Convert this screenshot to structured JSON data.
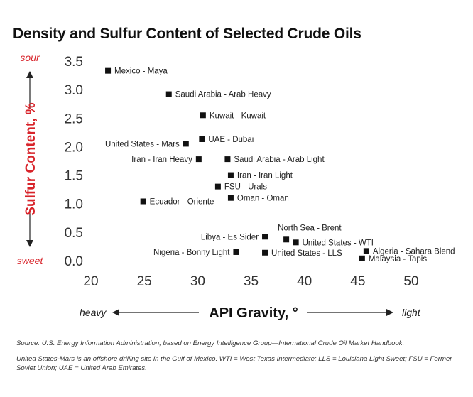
{
  "chart_data": {
    "type": "scatter",
    "title": "Density and Sulfur Content of Selected Crude Oils",
    "xlabel": "API Gravity, °",
    "ylabel": "Sulfur Content, %",
    "xlim": [
      20,
      50
    ],
    "ylim": [
      0,
      3.5
    ],
    "x_ticks": [
      "20",
      "25",
      "30",
      "35",
      "40",
      "45",
      "50"
    ],
    "y_ticks": [
      "0.0",
      "0.5",
      "1.0",
      "1.5",
      "2.0",
      "2.5",
      "3.0",
      "3.5"
    ],
    "x_low_end": "heavy",
    "x_high_end": "light",
    "y_top_end": "sour",
    "y_bottom_end": "sweet",
    "grid": false,
    "points": [
      {
        "label": "Mexico - Maya",
        "x": 21.6,
        "y": 3.33,
        "side": "right"
      },
      {
        "label": "Saudi Arabia - Arab Heavy",
        "x": 27.3,
        "y": 2.92,
        "side": "right"
      },
      {
        "label": "Kuwait - Kuwait",
        "x": 30.5,
        "y": 2.55,
        "side": "right"
      },
      {
        "label": "UAE - Dubai",
        "x": 30.4,
        "y": 2.13,
        "side": "right"
      },
      {
        "label": "United States - Mars",
        "x": 28.9,
        "y": 2.05,
        "side": "left"
      },
      {
        "label": "Iran - Iran Heavy",
        "x": 30.1,
        "y": 1.78,
        "side": "left"
      },
      {
        "label": "Saudi Arabia - Arab Light",
        "x": 32.8,
        "y": 1.78,
        "side": "right"
      },
      {
        "label": "Iran - Iran Light",
        "x": 33.1,
        "y": 1.5,
        "side": "right"
      },
      {
        "label": "FSU - Urals",
        "x": 31.9,
        "y": 1.3,
        "side": "right"
      },
      {
        "label": "Ecuador - Oriente",
        "x": 24.9,
        "y": 1.04,
        "side": "right"
      },
      {
        "label": "Oman - Oman",
        "x": 33.1,
        "y": 1.1,
        "side": "right"
      },
      {
        "label": "North Sea - Brent",
        "x": 38.3,
        "y": 0.37,
        "side": "above"
      },
      {
        "label": "Libya - Es Sider",
        "x": 36.3,
        "y": 0.42,
        "side": "left"
      },
      {
        "label": "United States - WTI",
        "x": 39.2,
        "y": 0.32,
        "side": "right"
      },
      {
        "label": "Algeria - Sahara Blend",
        "x": 45.8,
        "y": 0.17,
        "side": "right"
      },
      {
        "label": "Nigeria - Bonny Light",
        "x": 33.6,
        "y": 0.15,
        "side": "left"
      },
      {
        "label": "United States - LLS",
        "x": 36.3,
        "y": 0.14,
        "side": "right"
      },
      {
        "label": "Malaysia - Tapis",
        "x": 45.4,
        "y": 0.04,
        "side": "right"
      }
    ]
  },
  "notes": {
    "source": "Source: U.S. Energy Information Administration, based on Energy Intelligence Group—International Crude Oil Market Handbook.",
    "footnote": "United States-Mars is an offshore drilling site in the Gulf of Mexico. WTI = West Texas Intermediate; LLS = Louisiana Light Sweet; FSU = Former Soviet Union; UAE = United Arab Emirates."
  },
  "colors": {
    "accent": "#d8232a",
    "marker": "#111111",
    "axis": "#222222"
  }
}
